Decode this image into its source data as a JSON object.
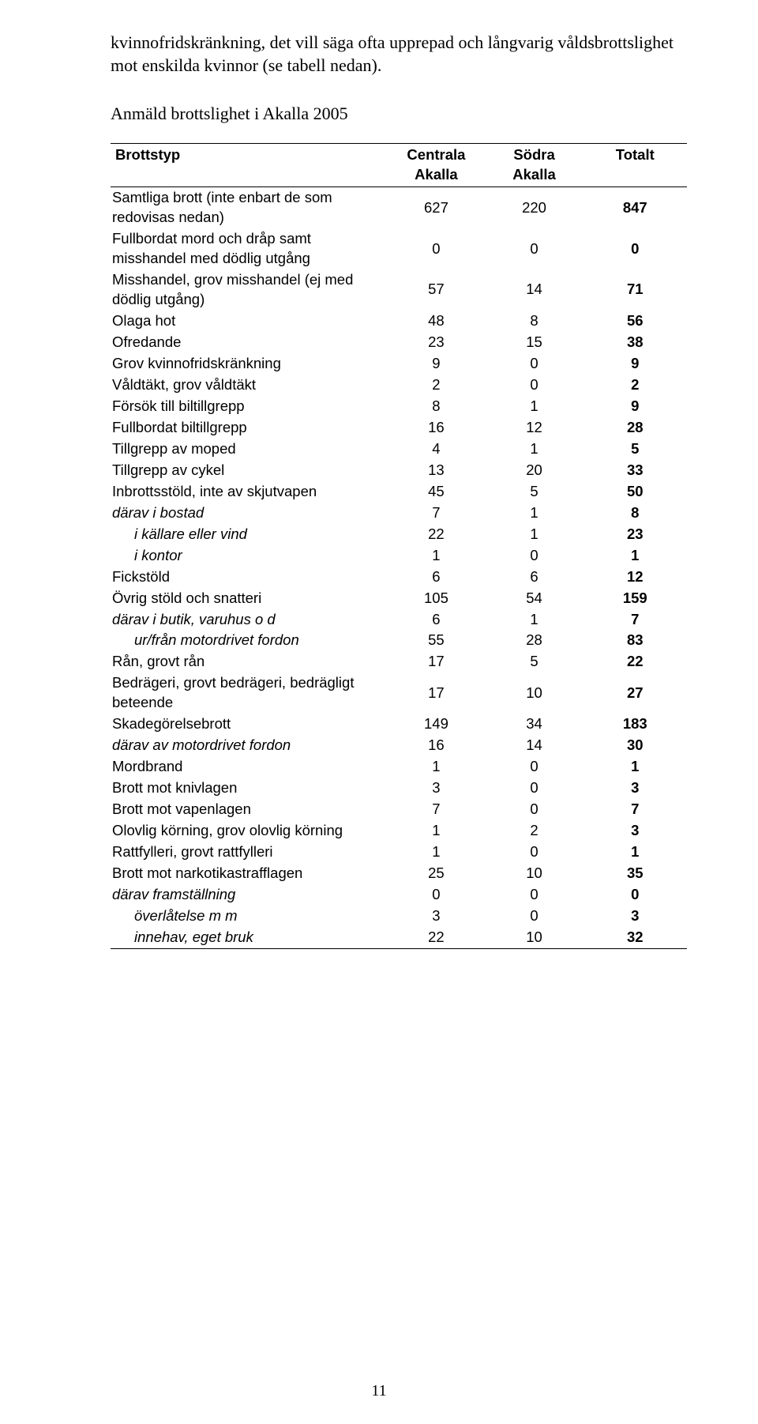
{
  "intro_text": "kvinnofridskränkning, det vill säga ofta upprepad och långvarig våldsbrottslighet mot enskilda kvinnor (se tabell nedan).",
  "section_title": "Anmäld brottslighet i Akalla 2005",
  "page_number": "11",
  "table": {
    "header": {
      "col0": "Brottstyp",
      "col1_line1": "Centrala",
      "col1_line2": "Akalla",
      "col2_line1": "Södra",
      "col2_line2": "Akalla",
      "col3": "Totalt"
    },
    "rows": [
      {
        "label": "Samtliga brott (inte enbart de som redovisas nedan)",
        "a": "627",
        "b": "220",
        "t": "847"
      },
      {
        "label": "Fullbordat mord och dråp samt misshandel med dödlig utgång",
        "a": "0",
        "b": "0",
        "t": "0"
      },
      {
        "label": "Misshandel, grov misshandel (ej med dödlig utgång)",
        "a": "57",
        "b": "14",
        "t": "71"
      },
      {
        "label": "Olaga hot",
        "a": "48",
        "b": "8",
        "t": "56"
      },
      {
        "label": "Ofredande",
        "a": "23",
        "b": "15",
        "t": "38"
      },
      {
        "label": "Grov kvinnofridskränkning",
        "a": "9",
        "b": "0",
        "t": "9"
      },
      {
        "label": "Våldtäkt, grov våldtäkt",
        "a": "2",
        "b": "0",
        "t": "2"
      },
      {
        "label": "Försök till biltillgrepp",
        "a": "8",
        "b": "1",
        "t": "9"
      },
      {
        "label": "Fullbordat biltillgrepp",
        "a": "16",
        "b": "12",
        "t": "28"
      },
      {
        "label": "Tillgrepp av moped",
        "a": "4",
        "b": "1",
        "t": "5"
      },
      {
        "label": "Tillgrepp av cykel",
        "a": "13",
        "b": "20",
        "t": "33"
      },
      {
        "label": "Inbrottsstöld, inte av skjutvapen",
        "a": "45",
        "b": "5",
        "t": "50"
      },
      {
        "label": "därav i bostad",
        "a": "7",
        "b": "1",
        "t": "8",
        "italic": true
      },
      {
        "label": "i källare eller vind",
        "a": "22",
        "b": "1",
        "t": "23",
        "italic": true,
        "indent": 1
      },
      {
        "label": "i kontor",
        "a": "1",
        "b": "0",
        "t": "1",
        "italic": true,
        "indent": 1
      },
      {
        "label": "Fickstöld",
        "a": "6",
        "b": "6",
        "t": "12"
      },
      {
        "label": "Övrig stöld och snatteri",
        "a": "105",
        "b": "54",
        "t": "159"
      },
      {
        "label": "därav i butik, varuhus o d",
        "a": "6",
        "b": "1",
        "t": "7",
        "italic": true
      },
      {
        "label": "ur/från motordrivet fordon",
        "a": "55",
        "b": "28",
        "t": "83",
        "italic": true,
        "indent": 1
      },
      {
        "label": "Rån, grovt rån",
        "a": "17",
        "b": "5",
        "t": "22"
      },
      {
        "label": "Bedrägeri, grovt bedrägeri, bedrägligt beteende",
        "a": "17",
        "b": "10",
        "t": "27"
      },
      {
        "label": "Skadegörelsebrott",
        "a": "149",
        "b": "34",
        "t": "183"
      },
      {
        "label": "därav av motordrivet fordon",
        "a": "16",
        "b": "14",
        "t": "30",
        "italic": true
      },
      {
        "label": "Mordbrand",
        "a": "1",
        "b": "0",
        "t": "1"
      },
      {
        "label": "Brott mot knivlagen",
        "a": "3",
        "b": "0",
        "t": "3"
      },
      {
        "label": "Brott mot vapenlagen",
        "a": "7",
        "b": "0",
        "t": "7"
      },
      {
        "label": "Olovlig körning, grov olovlig körning",
        "a": "1",
        "b": "2",
        "t": "3"
      },
      {
        "label": "Rattfylleri, grovt rattfylleri",
        "a": "1",
        "b": "0",
        "t": "1"
      },
      {
        "label": "Brott mot narkotikastrafflagen",
        "a": "25",
        "b": "10",
        "t": "35"
      },
      {
        "label": "därav framställning",
        "a": "0",
        "b": "0",
        "t": "0",
        "italic": true
      },
      {
        "label": "överlåtelse m m",
        "a": "3",
        "b": "0",
        "t": "3",
        "italic": true,
        "indent": 1
      },
      {
        "label": "innehav, eget bruk",
        "a": "22",
        "b": "10",
        "t": "32",
        "italic": true,
        "indent": 1
      }
    ]
  }
}
